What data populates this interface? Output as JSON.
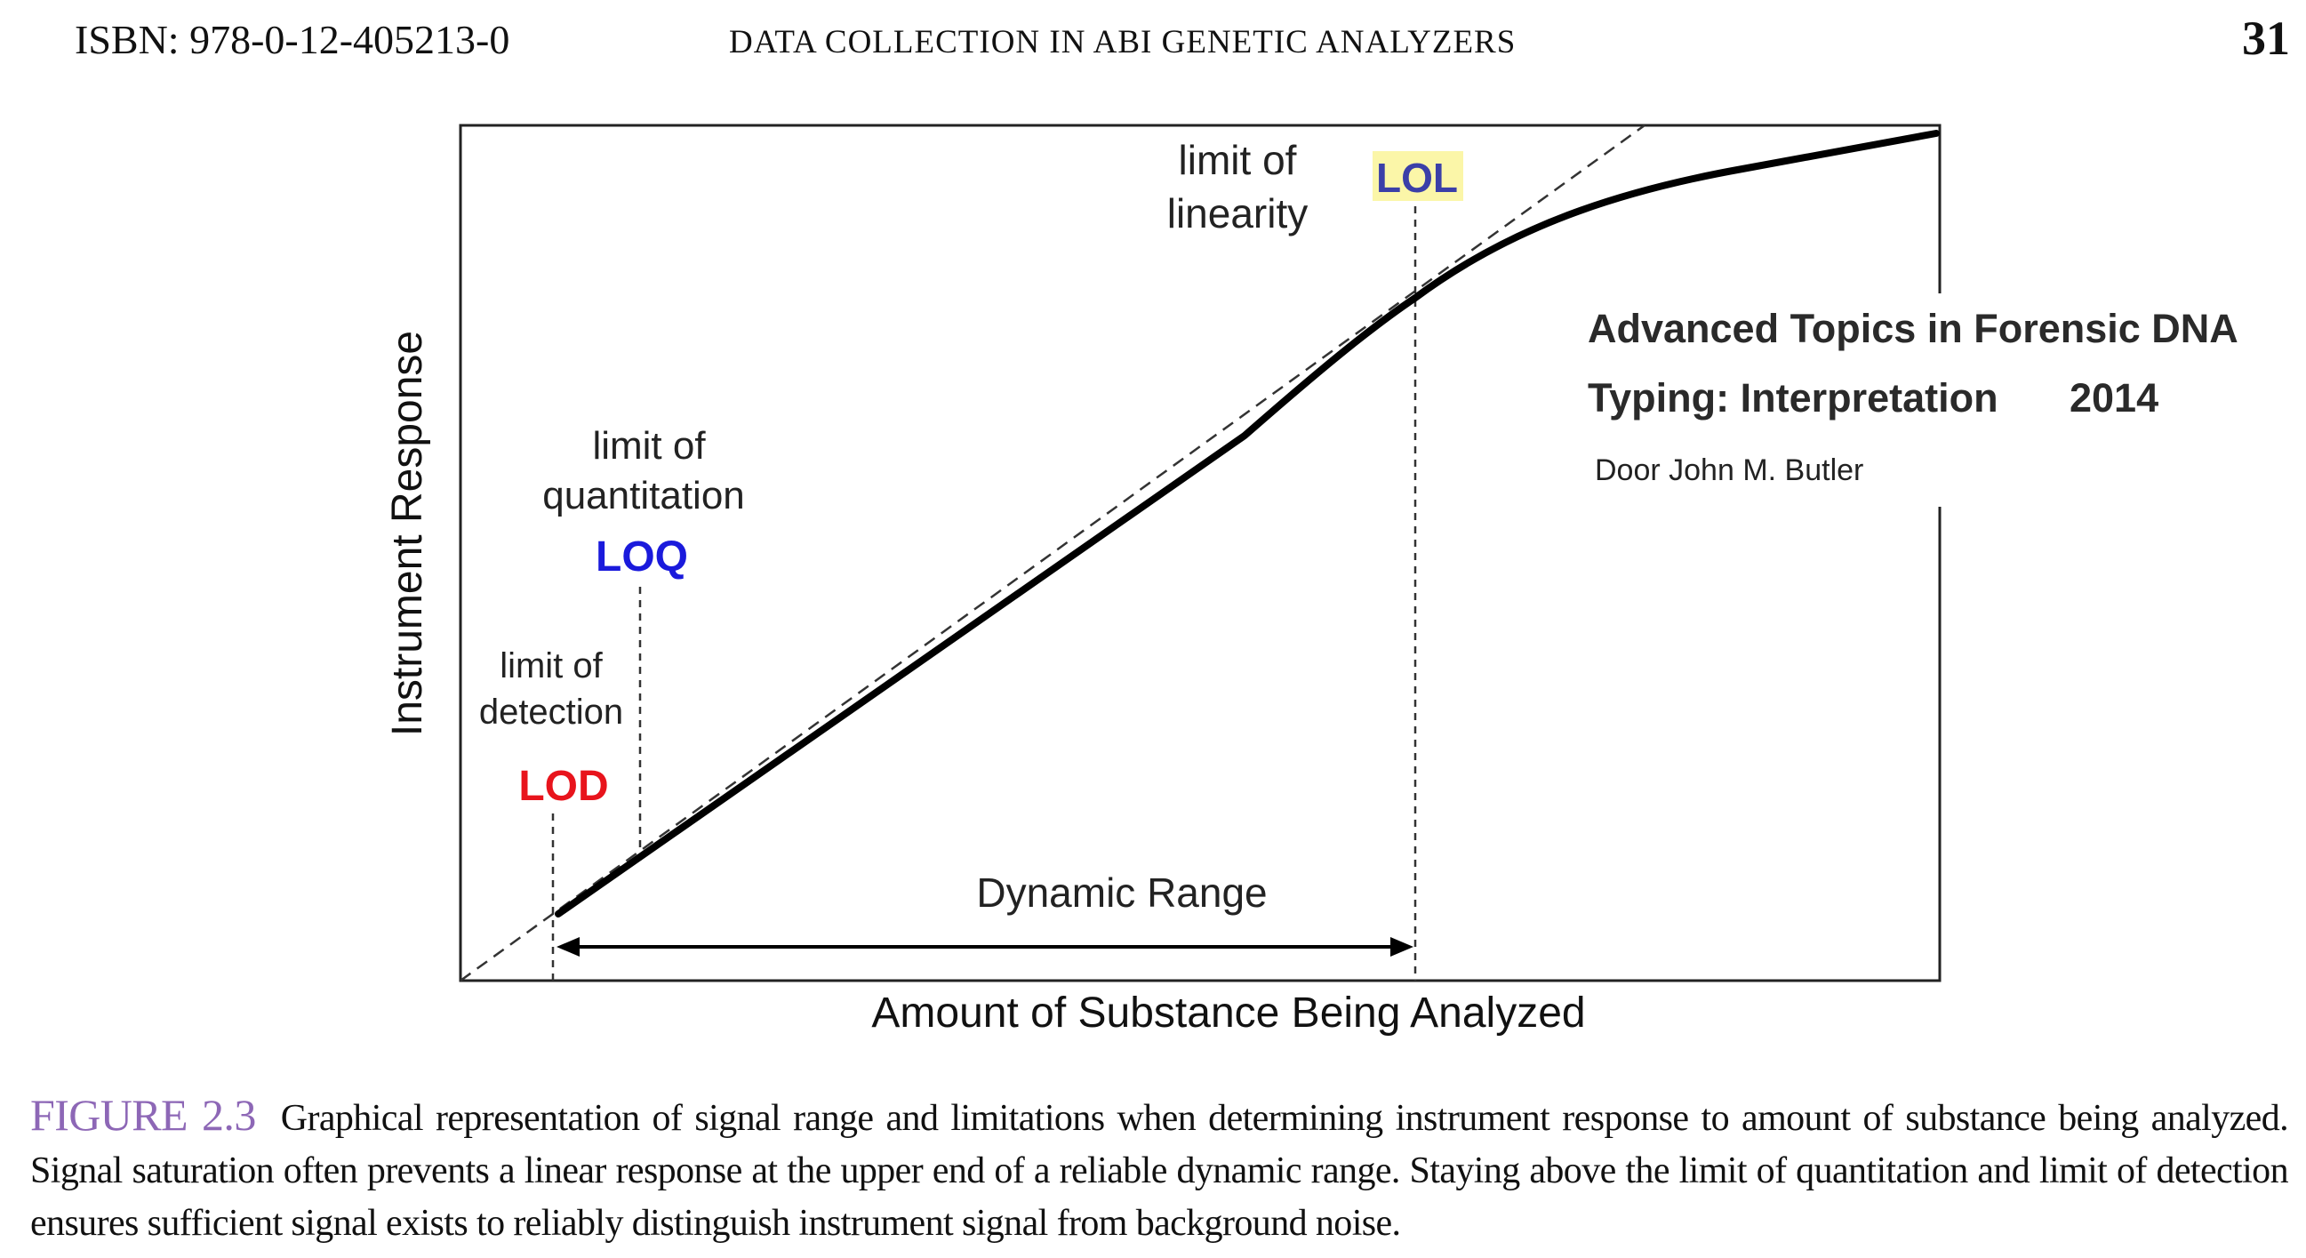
{
  "header": {
    "isbn": "ISBN: 978-0-12-405213-0",
    "running_title": "DATA COLLECTION IN ABI GENETIC ANALYZERS",
    "page_number": "31"
  },
  "figure": {
    "y_axis_label": "Instrument Response",
    "x_axis_label": "Amount of Substance Being Analyzed",
    "lod_desc_1": "limit of",
    "lod_desc_2": "detection",
    "lod": "LOD",
    "loq_desc_1": "limit of",
    "loq_desc_2": "quantitation",
    "loq": "LOQ",
    "lol_desc_1": "limit of",
    "lol_desc_2": "linearity",
    "lol": "LOL",
    "dynamic_range": "Dynamic Range",
    "colors": {
      "lod": "#e8141c",
      "loq": "#1a1adc",
      "lol": "#3b3fa8",
      "lol_highlight": "#fbf6a8",
      "caption_label": "#8d67b6"
    }
  },
  "overlay": {
    "title_line1": "Advanced Topics in Forensic DNA",
    "title_line2": "Typing: Interpretation",
    "year": "2014",
    "author": "Door John M. Butler"
  },
  "caption": {
    "label": "FIGURE 2.3",
    "text": "Graphical representation of signal range and limitations when determining instrument response to amount of substance being analyzed. Signal saturation often prevents a linear response at the upper end of a reliable dynamic range. Staying above the limit of quantitation and limit of detection ensures sufficient signal exists to reliably distinguish instrument signal from background noise."
  }
}
